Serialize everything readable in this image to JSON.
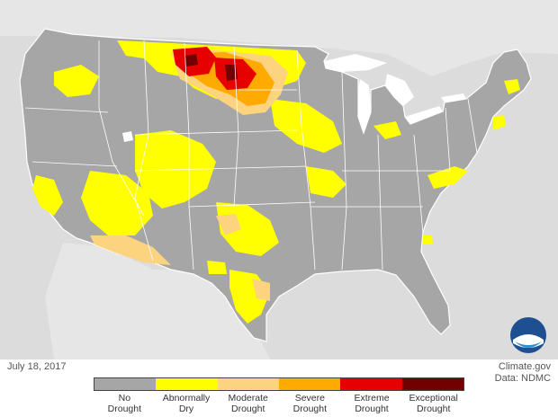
{
  "date": "July 18, 2017",
  "credit": {
    "site": "Climate.gov",
    "data_source": "Data: NDMC"
  },
  "logo_text": "NOAA",
  "legend": [
    {
      "line1": "No",
      "line2": "Drought",
      "color": "#a6a6a6"
    },
    {
      "line1": "Abnormally",
      "line2": "Dry",
      "color": "#ffff00"
    },
    {
      "line1": "Moderate",
      "line2": "Drought",
      "color": "#fcd37f"
    },
    {
      "line1": "Severe",
      "line2": "Drought",
      "color": "#ffaa00"
    },
    {
      "line1": "Extreme",
      "line2": "Drought",
      "color": "#e60000"
    },
    {
      "line1": "Exceptional",
      "line2": "Drought",
      "color": "#730000"
    }
  ],
  "map_colors": {
    "background": "#dcdcdc",
    "land": "#a6a6a6",
    "water": "#ffffff",
    "state_lines": "#ffffff"
  }
}
